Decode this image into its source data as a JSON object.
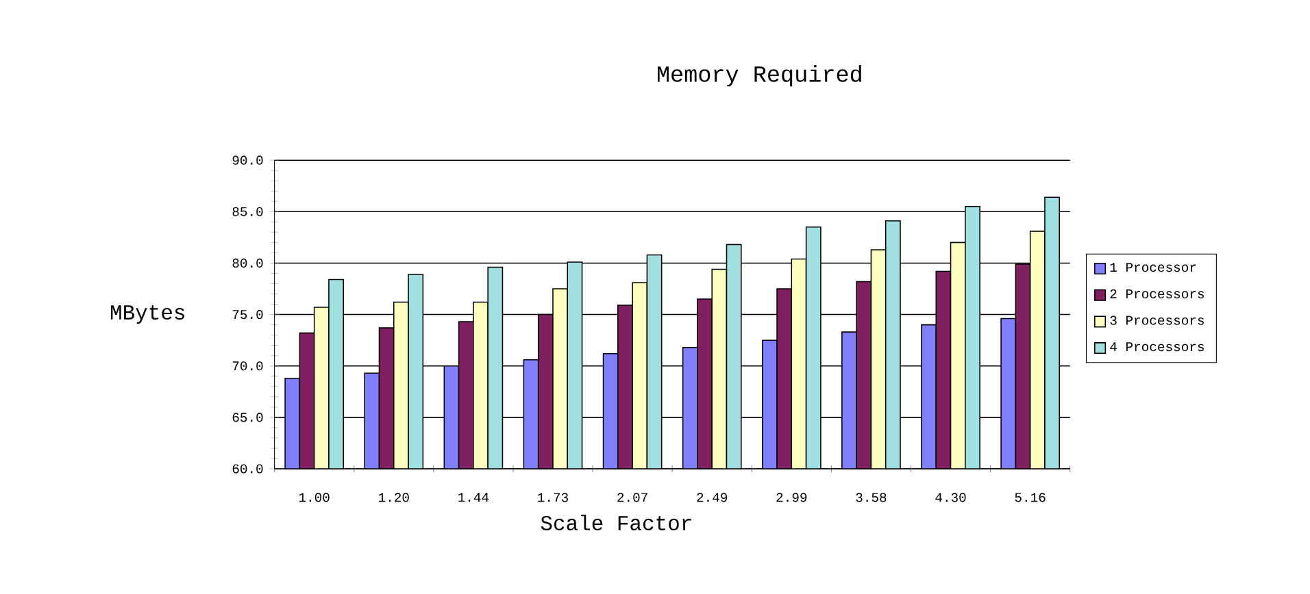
{
  "chart_data": {
    "type": "bar",
    "title": "Memory Required",
    "xlabel": "Scale Factor",
    "ylabel": "MBytes",
    "categories": [
      "1.00",
      "1.20",
      "1.44",
      "1.73",
      "2.07",
      "2.49",
      "2.99",
      "3.58",
      "4.30",
      "5.16"
    ],
    "series": [
      {
        "name": "1 Processor",
        "color": "#8080ff",
        "values": [
          68.8,
          69.3,
          70.0,
          70.6,
          71.2,
          71.8,
          72.5,
          73.3,
          74.0,
          74.6
        ]
      },
      {
        "name": "2 Processors",
        "color": "#802060",
        "values": [
          73.2,
          73.7,
          74.3,
          75.0,
          75.9,
          76.5,
          77.5,
          78.2,
          79.2,
          79.9
        ]
      },
      {
        "name": "3 Processors",
        "color": "#ffffc0",
        "values": [
          75.7,
          76.2,
          76.2,
          77.5,
          78.1,
          79.4,
          80.4,
          81.3,
          82.0,
          83.1
        ]
      },
      {
        "name": "4 Processors",
        "color": "#a0e0e0",
        "values": [
          78.4,
          78.9,
          79.6,
          80.1,
          80.8,
          81.8,
          83.5,
          84.1,
          85.5,
          86.4
        ]
      }
    ],
    "ylim": [
      60,
      90
    ],
    "yticks": [
      {
        "value": 60,
        "label": "60.0"
      },
      {
        "value": 65,
        "label": "65.0"
      },
      {
        "value": 70,
        "label": "70.0"
      },
      {
        "value": 75,
        "label": "75.0"
      },
      {
        "value": 80,
        "label": "80.0"
      },
      {
        "value": 85,
        "label": "85.0"
      },
      {
        "value": 90,
        "label": "90.0"
      }
    ],
    "grid": "y",
    "legend": "right"
  }
}
